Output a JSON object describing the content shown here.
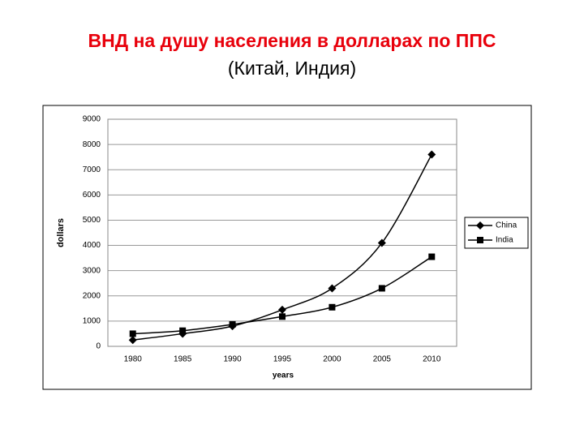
{
  "chart_data": {
    "type": "line",
    "title": "ВНД на душу населения в долларах по ППС",
    "subtitle": "(Китай, Индия)",
    "x_label": "years",
    "y_label": "dollars",
    "categories": [
      "1980",
      "1985",
      "1990",
      "1995",
      "2000",
      "2005",
      "2010"
    ],
    "series": [
      {
        "name": "China",
        "color": "#000000",
        "marker": "diamond",
        "values": [
          250,
          500,
          800,
          1450,
          2300,
          4100,
          7600
        ]
      },
      {
        "name": "India",
        "color": "#000000",
        "marker": "square",
        "values": [
          500,
          620,
          870,
          1180,
          1550,
          2300,
          3550
        ]
      }
    ],
    "ylim": [
      0,
      9000
    ],
    "yticks": [
      0,
      1000,
      2000,
      3000,
      4000,
      5000,
      6000,
      7000,
      8000,
      9000
    ],
    "grid": true,
    "legend": "right"
  }
}
